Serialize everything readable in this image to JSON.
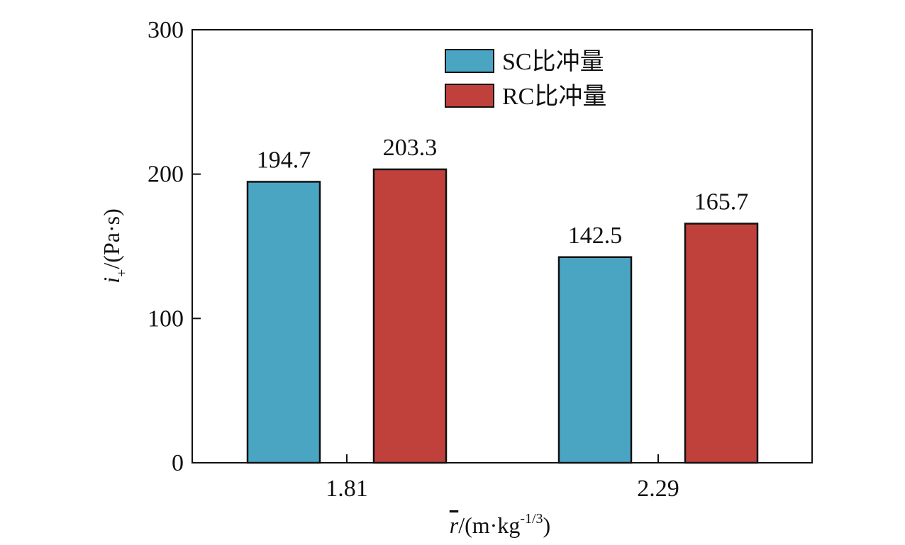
{
  "chart_data": {
    "type": "bar",
    "categories": [
      "1.81",
      "2.29"
    ],
    "series": [
      {
        "name": "SC比冲量",
        "color": "#4aa5c3",
        "values": [
          194.7,
          142.5
        ]
      },
      {
        "name": "RC比冲量",
        "color": "#c0403c",
        "values": [
          203.3,
          165.7
        ]
      }
    ],
    "data_labels": [
      [
        "194.7",
        "142.5"
      ],
      [
        "203.3",
        "165.7"
      ]
    ],
    "ylim": [
      0,
      300
    ],
    "yticks": [
      0,
      100,
      200,
      300
    ],
    "ytick_labels": [
      "0",
      "100",
      "200",
      "300"
    ],
    "xlabel": {
      "symbol": "r",
      "main": "/(m·kg",
      "sup": "-1/3",
      "end": ")"
    },
    "ylabel": {
      "symbol": "i",
      "sub": "+",
      "main": "/(Pa·s)"
    },
    "grid": false,
    "legend_position": "top-center"
  }
}
